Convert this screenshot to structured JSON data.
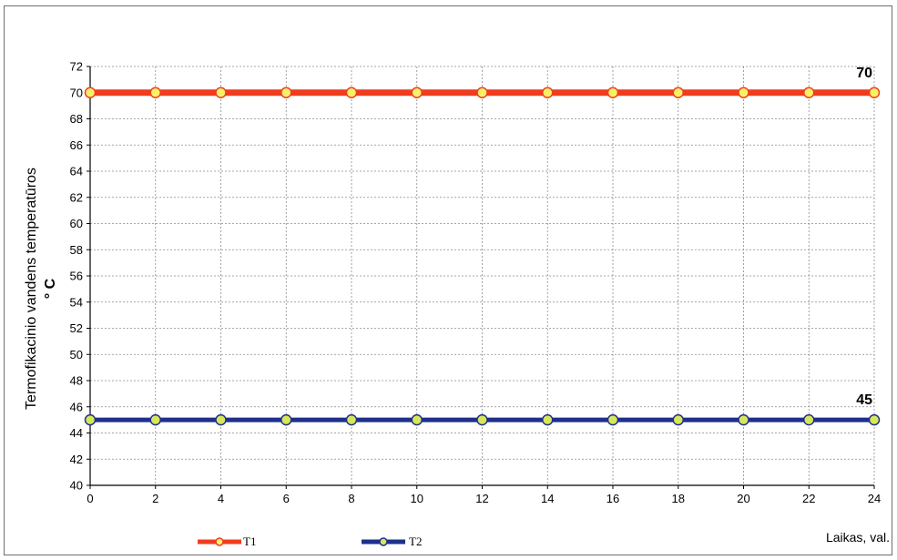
{
  "chart_data": {
    "type": "line",
    "x": [
      0,
      2,
      4,
      6,
      8,
      10,
      12,
      14,
      16,
      18,
      20,
      22,
      24
    ],
    "xlim": [
      0,
      24
    ],
    "x_ticks": [
      "0",
      "2",
      "4",
      "6",
      "8",
      "10",
      "12",
      "14",
      "16",
      "18",
      "20",
      "22",
      "24"
    ],
    "ylim": [
      40,
      72
    ],
    "y_ticks": [
      "40",
      "42",
      "44",
      "46",
      "48",
      "50",
      "52",
      "54",
      "56",
      "58",
      "60",
      "62",
      "64",
      "66",
      "68",
      "70",
      "72"
    ],
    "xlabel": "Laikas, val.",
    "ylabel_line1": "Termofikacinio vandens temperatūros",
    "ylabel_line2": "° C",
    "grid": true,
    "legend_position": "bottom-left",
    "series": [
      {
        "name": "T1",
        "values": [
          70,
          70,
          70,
          70,
          70,
          70,
          70,
          70,
          70,
          70,
          70,
          70,
          70
        ],
        "color": "#f03c1e",
        "marker_fill": "#f8f06a",
        "end_label": "70"
      },
      {
        "name": "T2",
        "values": [
          45,
          45,
          45,
          45,
          45,
          45,
          45,
          45,
          45,
          45,
          45,
          45,
          45
        ],
        "color": "#1f2f8c",
        "marker_fill": "#d6e85a",
        "end_label": "45"
      }
    ]
  }
}
